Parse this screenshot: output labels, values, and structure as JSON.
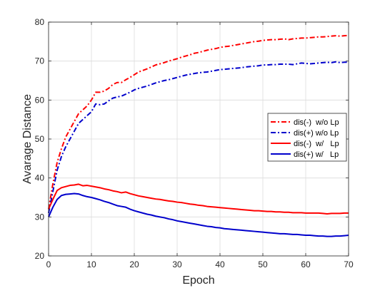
{
  "chart_data": {
    "type": "line",
    "xlabel": "Epoch",
    "ylabel": "Avarage Distance",
    "xlim": [
      0,
      70
    ],
    "ylim": [
      20,
      80
    ],
    "xticks": [
      0,
      10,
      20,
      30,
      40,
      50,
      60,
      70
    ],
    "yticks": [
      20,
      30,
      40,
      50,
      60,
      70,
      80
    ],
    "grid": true,
    "legend_position": "right",
    "x": [
      0,
      1,
      2,
      3,
      4,
      5,
      6,
      7,
      8,
      9,
      10,
      11,
      12,
      13,
      14,
      15,
      16,
      17,
      18,
      19,
      20,
      21,
      22,
      23,
      24,
      25,
      26,
      27,
      28,
      29,
      30,
      31,
      32,
      33,
      34,
      35,
      36,
      37,
      38,
      39,
      40,
      41,
      42,
      43,
      44,
      45,
      46,
      47,
      48,
      49,
      50,
      51,
      52,
      53,
      54,
      55,
      56,
      57,
      58,
      59,
      60,
      61,
      62,
      63,
      64,
      65,
      66,
      67,
      68,
      69,
      70
    ],
    "series": [
      {
        "name": "dis(-)  w/o Lp",
        "color": "#ff0000",
        "style": "dashdot",
        "values": [
          32.0,
          38.5,
          44.0,
          47.5,
          50.5,
          52.5,
          54.5,
          56.5,
          57.5,
          58.5,
          60.0,
          62.0,
          62.0,
          62.3,
          63.0,
          64.0,
          64.5,
          64.5,
          65.2,
          65.8,
          66.5,
          67.2,
          67.6,
          68.0,
          68.5,
          69.0,
          69.3,
          69.6,
          70.0,
          70.3,
          70.6,
          71.0,
          71.3,
          71.6,
          72.0,
          72.2,
          72.5,
          72.8,
          73.0,
          73.2,
          73.5,
          73.7,
          73.8,
          74.0,
          74.2,
          74.4,
          74.6,
          74.8,
          75.0,
          75.1,
          75.3,
          75.4,
          75.5,
          75.5,
          75.6,
          75.7,
          75.5,
          75.7,
          75.8,
          75.9,
          75.9,
          76.0,
          76.1,
          76.2,
          76.2,
          76.3,
          76.4,
          76.5,
          76.4,
          76.5,
          76.6
        ]
      },
      {
        "name": "dis(+) w/o Lp",
        "color": "#0000cc",
        "style": "dashdot",
        "values": [
          31.0,
          36.5,
          42.0,
          45.5,
          48.0,
          50.0,
          52.0,
          54.0,
          55.0,
          56.0,
          57.0,
          59.0,
          58.8,
          59.0,
          59.8,
          60.5,
          60.8,
          61.0,
          61.5,
          62.0,
          62.6,
          63.0,
          63.3,
          63.6,
          64.0,
          64.4,
          64.7,
          65.0,
          65.2,
          65.5,
          65.8,
          66.1,
          66.4,
          66.6,
          66.8,
          67.0,
          67.1,
          67.2,
          67.4,
          67.6,
          67.8,
          67.9,
          68.0,
          68.1,
          68.2,
          68.3,
          68.5,
          68.6,
          68.7,
          68.8,
          69.0,
          69.0,
          69.1,
          69.1,
          69.2,
          69.2,
          69.2,
          69.1,
          69.3,
          69.5,
          69.4,
          69.3,
          69.4,
          69.5,
          69.6,
          69.7,
          69.6,
          69.8,
          69.6,
          69.7,
          69.7
        ]
      },
      {
        "name": "dis(-)  w/   Lp",
        "color": "#ff0000",
        "style": "solid",
        "values": [
          32.0,
          34.5,
          36.8,
          37.5,
          37.8,
          38.1,
          38.2,
          38.4,
          38.0,
          38.1,
          37.9,
          37.7,
          37.5,
          37.2,
          37.0,
          36.7,
          36.5,
          36.2,
          36.4,
          36.0,
          35.7,
          35.4,
          35.2,
          35.0,
          34.8,
          34.6,
          34.5,
          34.3,
          34.1,
          34.0,
          33.8,
          33.7,
          33.5,
          33.3,
          33.2,
          33.0,
          32.9,
          32.7,
          32.6,
          32.5,
          32.4,
          32.3,
          32.2,
          32.1,
          32.0,
          31.9,
          31.8,
          31.7,
          31.6,
          31.6,
          31.5,
          31.4,
          31.4,
          31.3,
          31.3,
          31.2,
          31.2,
          31.1,
          31.1,
          31.1,
          31.0,
          31.0,
          31.0,
          31.0,
          30.9,
          30.8,
          30.9,
          30.9,
          30.9,
          31.0,
          31.0
        ]
      },
      {
        "name": "dis(+) w/   Lp",
        "color": "#0000cc",
        "style": "solid",
        "values": [
          30.0,
          32.5,
          34.5,
          35.5,
          35.8,
          35.9,
          36.0,
          35.9,
          35.5,
          35.2,
          35.0,
          34.7,
          34.4,
          34.0,
          33.7,
          33.3,
          32.9,
          32.7,
          32.5,
          32.0,
          31.6,
          31.3,
          31.0,
          30.7,
          30.5,
          30.2,
          30.0,
          29.8,
          29.5,
          29.3,
          29.0,
          28.8,
          28.6,
          28.4,
          28.2,
          28.0,
          27.8,
          27.6,
          27.5,
          27.3,
          27.2,
          27.0,
          26.9,
          26.8,
          26.7,
          26.6,
          26.5,
          26.4,
          26.3,
          26.2,
          26.1,
          26.0,
          25.9,
          25.8,
          25.7,
          25.7,
          25.6,
          25.5,
          25.5,
          25.4,
          25.3,
          25.3,
          25.2,
          25.1,
          25.1,
          25.0,
          25.0,
          25.1,
          25.1,
          25.2,
          25.3
        ]
      }
    ]
  }
}
